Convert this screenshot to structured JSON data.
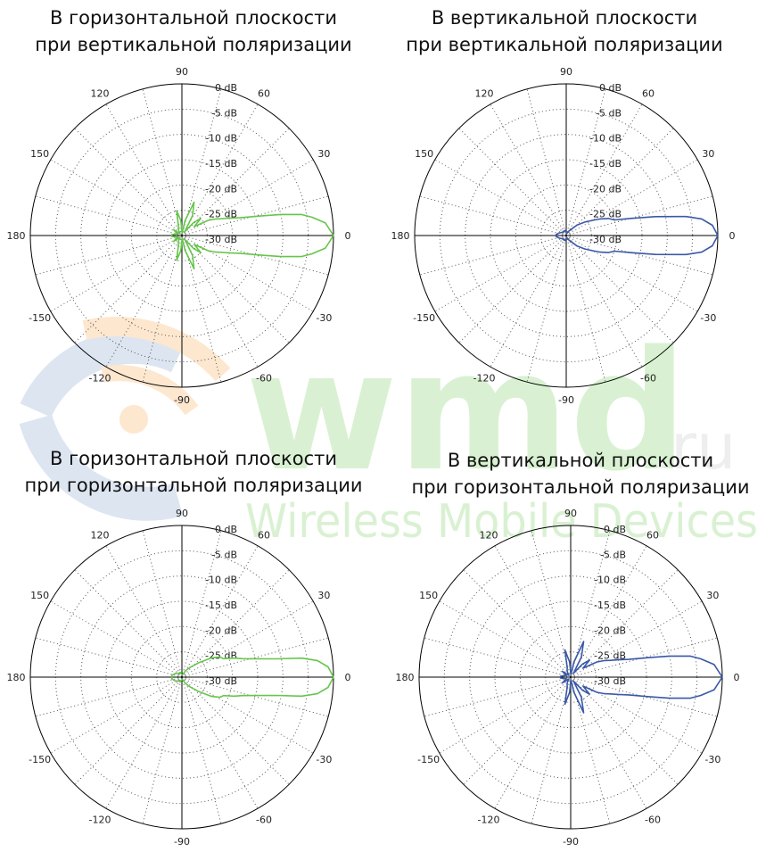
{
  "watermark": {
    "brand": "wmd",
    "suffix": ".ru",
    "tagline": "Wireless Mobile Devices",
    "colors": {
      "green": "#d9f1d2",
      "grey": "#eeeeee",
      "orange": "#fde7cf",
      "blue": "#dde5f1"
    }
  },
  "chart_data": [
    {
      "type": "polar",
      "title": [
        "В горизонтальной плоскости",
        "при вертикальной поляризации"
      ],
      "color": "#66c64a",
      "angle_ticks": [
        0,
        30,
        60,
        90,
        120,
        150,
        180,
        -150,
        -120,
        -90,
        -60,
        -30
      ],
      "radial_ticks": [
        "0 dB",
        "-5 dB",
        "-10 dB",
        "-15 dB",
        "-20 dB",
        "-25 dB",
        "-30 dB"
      ],
      "rlim": [
        -30,
        0
      ],
      "series": [
        {
          "theta": [
            0,
            5,
            8,
            10,
            12,
            14,
            17,
            20,
            23,
            26,
            30,
            36,
            42,
            48,
            55,
            62,
            70,
            78,
            86,
            94,
            102,
            110,
            118,
            126,
            134,
            145,
            160,
            175,
            180,
            -175,
            -160,
            -145,
            -134,
            -126,
            -118,
            -110,
            -102,
            -94,
            -86,
            -78,
            -70,
            -62,
            -55,
            -48,
            -42,
            -36,
            -30,
            -26,
            -23,
            -20,
            -17,
            -14,
            -12,
            -10,
            -8,
            -5
          ],
          "r": [
            0,
            -1.5,
            -4,
            -6,
            -10,
            -14,
            -18,
            -20,
            -21.5,
            -22.5,
            -24,
            -27,
            -25,
            -26.5,
            -29,
            -25.5,
            -23,
            -27,
            -29.5,
            -27,
            -25,
            -28,
            -28.5,
            -29,
            -29.5,
            -28,
            -29,
            -28,
            -28,
            -28,
            -29,
            -28,
            -29.5,
            -29,
            -28.5,
            -28,
            -25,
            -27,
            -29.5,
            -27,
            -23,
            -25.5,
            -29,
            -26.5,
            -25,
            -27,
            -24,
            -22.5,
            -21.5,
            -20,
            -18,
            -14,
            -10,
            -6,
            -4,
            -1.5
          ]
        }
      ]
    },
    {
      "type": "polar",
      "title": [
        "В вертикальной плоскости",
        "при вертикальной поляризации"
      ],
      "color": "#3a58a8",
      "angle_ticks": [
        0,
        30,
        60,
        90,
        120,
        150,
        180,
        -150,
        -120,
        -90,
        -60,
        -30
      ],
      "radial_ticks": [
        "0 dB",
        "-5 dB",
        "-10 dB",
        "-15 dB",
        "-20 dB",
        "-25 dB",
        "-30 dB"
      ],
      "rlim": [
        -30,
        0
      ],
      "series": [
        {
          "theta": [
            0,
            4,
            7,
            9,
            12,
            15,
            18,
            22,
            26,
            30,
            36,
            44,
            52,
            60,
            70,
            85,
            100,
            120,
            140,
            160,
            175,
            180,
            -175,
            -160,
            -140,
            -120,
            -100,
            -85,
            -70,
            -60,
            -52,
            -44,
            -36,
            -30,
            -26,
            -22,
            -18,
            -15,
            -12,
            -9,
            -7,
            -4
          ],
          "r": [
            0,
            -1,
            -3,
            -6,
            -12,
            -17,
            -20,
            -21,
            -22.5,
            -24,
            -25.5,
            -27,
            -28.5,
            -29,
            -29.5,
            -29.5,
            -29,
            -29,
            -29,
            -28.5,
            -28,
            -28,
            -28,
            -28.5,
            -29,
            -29,
            -29,
            -29.5,
            -29.5,
            -29,
            -28.5,
            -27,
            -25.5,
            -24,
            -22.5,
            -21,
            -20,
            -17,
            -12,
            -6,
            -3,
            -1
          ]
        }
      ]
    },
    {
      "type": "polar",
      "title": [
        "В горизонтальной плоскости",
        "при горизонтальной поляризации"
      ],
      "color": "#66c64a",
      "angle_ticks": [
        0,
        30,
        60,
        90,
        120,
        150,
        180,
        -150,
        -120,
        -90,
        -60,
        -30
      ],
      "radial_ticks": [
        "0 dB",
        "-5 dB",
        "-10 dB",
        "-15 dB",
        "-20 dB",
        "-25 dB",
        "-30 dB"
      ],
      "rlim": [
        -30,
        0
      ],
      "series": [
        {
          "theta": [
            0,
            4,
            7,
            9,
            11,
            14,
            17,
            20,
            24,
            28,
            33,
            40,
            50,
            60,
            75,
            90,
            110,
            130,
            150,
            170,
            180,
            -170,
            -150,
            -130,
            -110,
            -90,
            -75,
            -60,
            -50,
            -40,
            -33,
            -28,
            -24,
            -20,
            -17,
            -14,
            -11,
            -9,
            -7,
            -4
          ],
          "r": [
            0,
            -1,
            -3,
            -6,
            -11,
            -15,
            -17.5,
            -19,
            -21,
            -21.5,
            -23,
            -25.5,
            -27.5,
            -28.5,
            -29.5,
            -29.5,
            -29,
            -29,
            -28.5,
            -28,
            -28,
            -28,
            -28.5,
            -29,
            -29,
            -29.5,
            -29.5,
            -28.5,
            -27.5,
            -25.5,
            -23,
            -21.5,
            -21,
            -19,
            -17.5,
            -15,
            -11,
            -6,
            -3,
            -1
          ]
        }
      ]
    },
    {
      "type": "polar",
      "title": [
        "В вертикальной плоскости",
        "при горизонтальной поляризации"
      ],
      "color": "#3a58a8",
      "angle_ticks": [
        0,
        30,
        60,
        90,
        120,
        150,
        180,
        -150,
        -120,
        -90,
        -60,
        -30
      ],
      "radial_ticks": [
        "0 dB",
        "-5 dB",
        "-10 dB",
        "-15 dB",
        "-20 dB",
        "-25 dB",
        "-30 dB"
      ],
      "rlim": [
        -30,
        0
      ],
      "series": [
        {
          "theta": [
            0,
            5,
            8,
            10,
            12,
            14,
            17,
            20,
            23,
            26,
            30,
            36,
            42,
            48,
            55,
            62,
            70,
            78,
            86,
            94,
            102,
            110,
            118,
            126,
            134,
            145,
            160,
            175,
            180,
            -175,
            -160,
            -145,
            -134,
            -126,
            -118,
            -110,
            -102,
            -94,
            -86,
            -78,
            -70,
            -62,
            -55,
            -48,
            -42,
            -36,
            -30,
            -26,
            -23,
            -20,
            -17,
            -14,
            -12,
            -10,
            -8,
            -5
          ],
          "r": [
            0,
            -1.5,
            -4,
            -6,
            -10,
            -14,
            -18,
            -20,
            -21.5,
            -22.5,
            -24,
            -27,
            -25,
            -26.5,
            -29,
            -25.5,
            -22.5,
            -27,
            -29.5,
            -27,
            -24.5,
            -28,
            -28.5,
            -29,
            -29.5,
            -28,
            -29,
            -28,
            -28,
            -28,
            -29,
            -28,
            -29.5,
            -29,
            -28.5,
            -28,
            -24.5,
            -27,
            -29.5,
            -27,
            -22.5,
            -25.5,
            -29,
            -26.5,
            -25,
            -27,
            -24,
            -22.5,
            -21.5,
            -20,
            -18,
            -14,
            -10,
            -6,
            -4,
            -1.5
          ]
        }
      ]
    }
  ]
}
